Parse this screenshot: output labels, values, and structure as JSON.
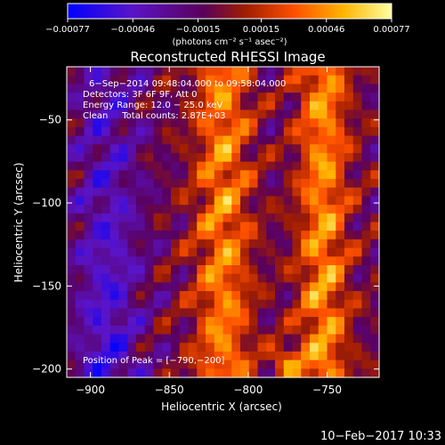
{
  "chart_data": {
    "type": "heatmap",
    "title": "Reconstructed RHESSI Image",
    "xlabel": "Heliocentric X (arcsec)",
    "ylabel": "Heliocentric Y (arcsec)",
    "xlim": [
      -915,
      -717
    ],
    "ylim": [
      -205,
      -18
    ],
    "x_ticks": [
      -900,
      -850,
      -800,
      -750
    ],
    "y_ticks": [
      -200,
      -150,
      -100,
      -50
    ],
    "x_tick_labels": [
      "−900",
      "−850",
      "−800",
      "−750"
    ],
    "y_tick_labels": [
      "−200",
      "−150",
      "−100",
      "−50"
    ],
    "colorbar": {
      "range": [
        -0.00077,
        0.00077
      ],
      "ticks": [
        -0.00077,
        -0.00046,
        -0.00015,
        0.00015,
        0.00046,
        0.00077
      ],
      "tick_labels": [
        "−0.00077",
        "−0.00046",
        "−0.00015",
        "0.00015",
        "0.00046",
        "0.00077"
      ],
      "units_label": "(photons cm⁻² s⁻¹ asec⁻²)",
      "colors": [
        "#0000ff",
        "#5a14c8",
        "#5a005a",
        "#a01e00",
        "#ff5000",
        "#ffb400",
        "#ffffa0"
      ]
    },
    "annotations": {
      "time_range": "6−Sep−2014 09:48:04.000 to 09:58:04.000",
      "detectors": "Detectors: 3F 6F 9F, Att 0",
      "energy_range": "Energy Range: 12.0 − 25.0 keV",
      "clean_counts": "Clean     Total counts: 2.87E+03",
      "peak_position": "Position of Peak = [−790,−200]"
    },
    "grid": false
  },
  "footer": {
    "date": "10−Feb−2017 10:33"
  }
}
